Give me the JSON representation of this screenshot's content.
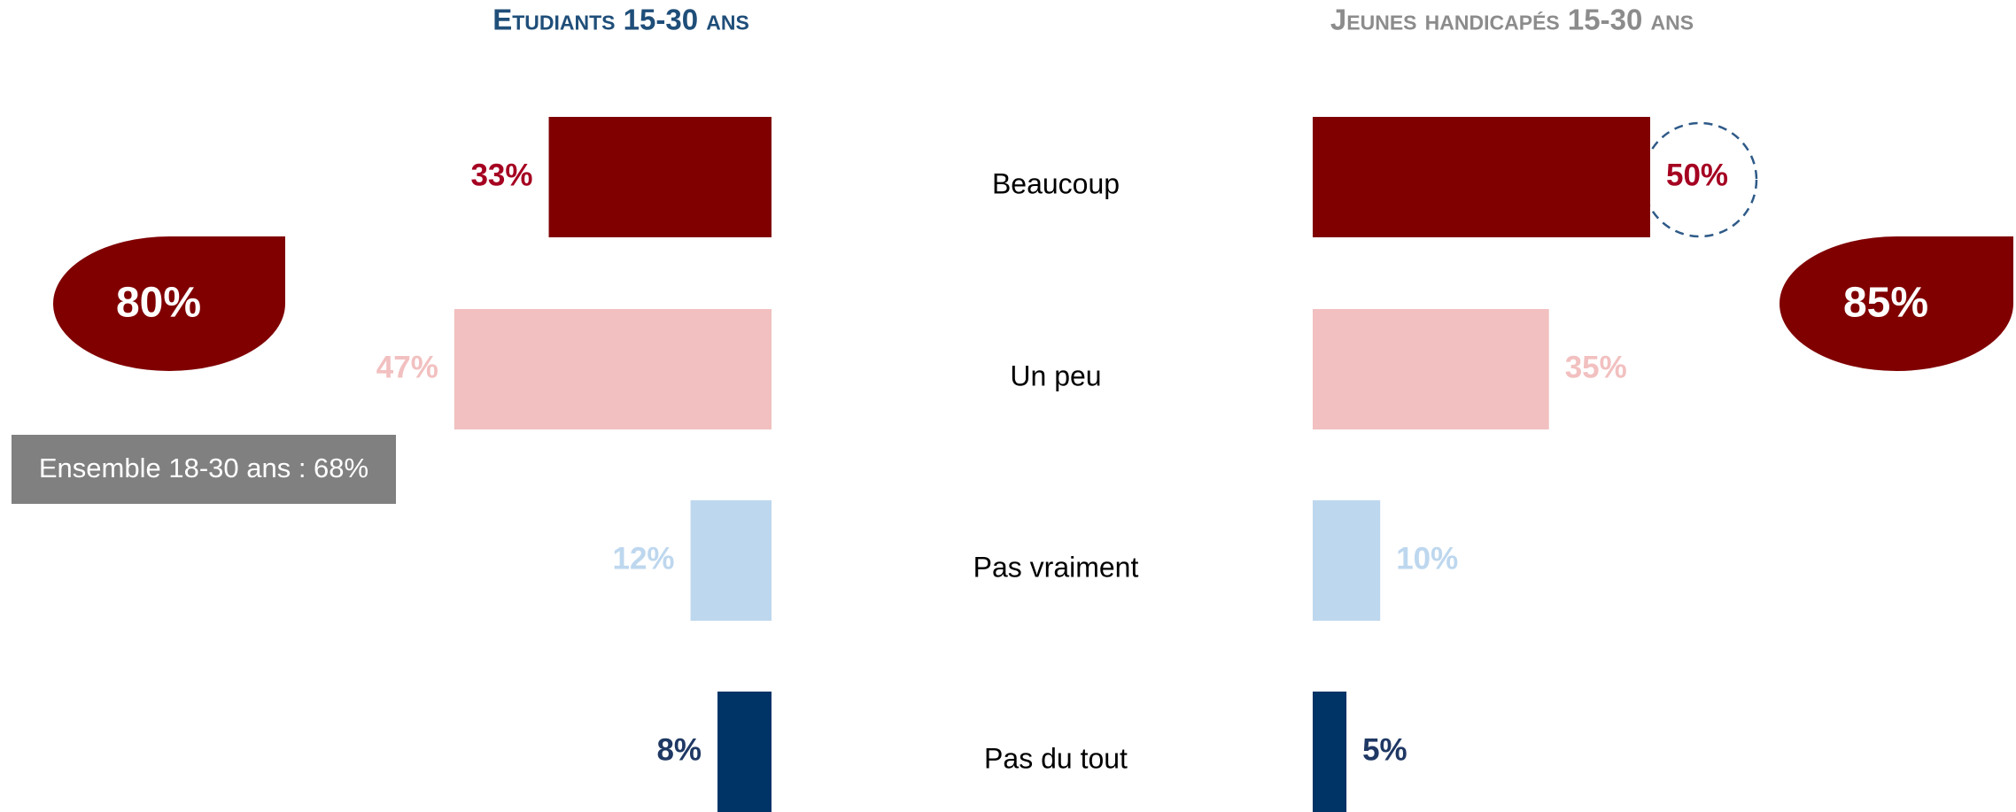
{
  "chart_data": {
    "type": "bar",
    "categories": [
      "Beaucoup",
      "Un peu",
      "Pas vraiment",
      "Pas du tout"
    ],
    "colors": [
      "#800000",
      "#f2c0c0",
      "#bdd7ee",
      "#003366"
    ],
    "label_colors": [
      "#a50021",
      "#f2c0c0",
      "#bdd7ee",
      "#1f3864"
    ],
    "series": [
      {
        "name": "Etudiants 15-30 ans",
        "title_color": "#1f4e79",
        "values": [
          33,
          47,
          12,
          8
        ],
        "value_labels": [
          "33%",
          "47%",
          "12%",
          "8%"
        ]
      },
      {
        "name": "Jeunes handicapés 15-30 ans",
        "title_color": "#8c8c8c",
        "values": [
          50,
          35,
          10,
          5
        ],
        "value_labels": [
          "50%",
          "35%",
          "10%",
          "5%"
        ]
      }
    ],
    "totals": [
      {
        "value": 80,
        "label": "80%"
      },
      {
        "value": 85,
        "label": "85%"
      }
    ],
    "annotation": "Ensemble 18-30 ans : 68%"
  }
}
